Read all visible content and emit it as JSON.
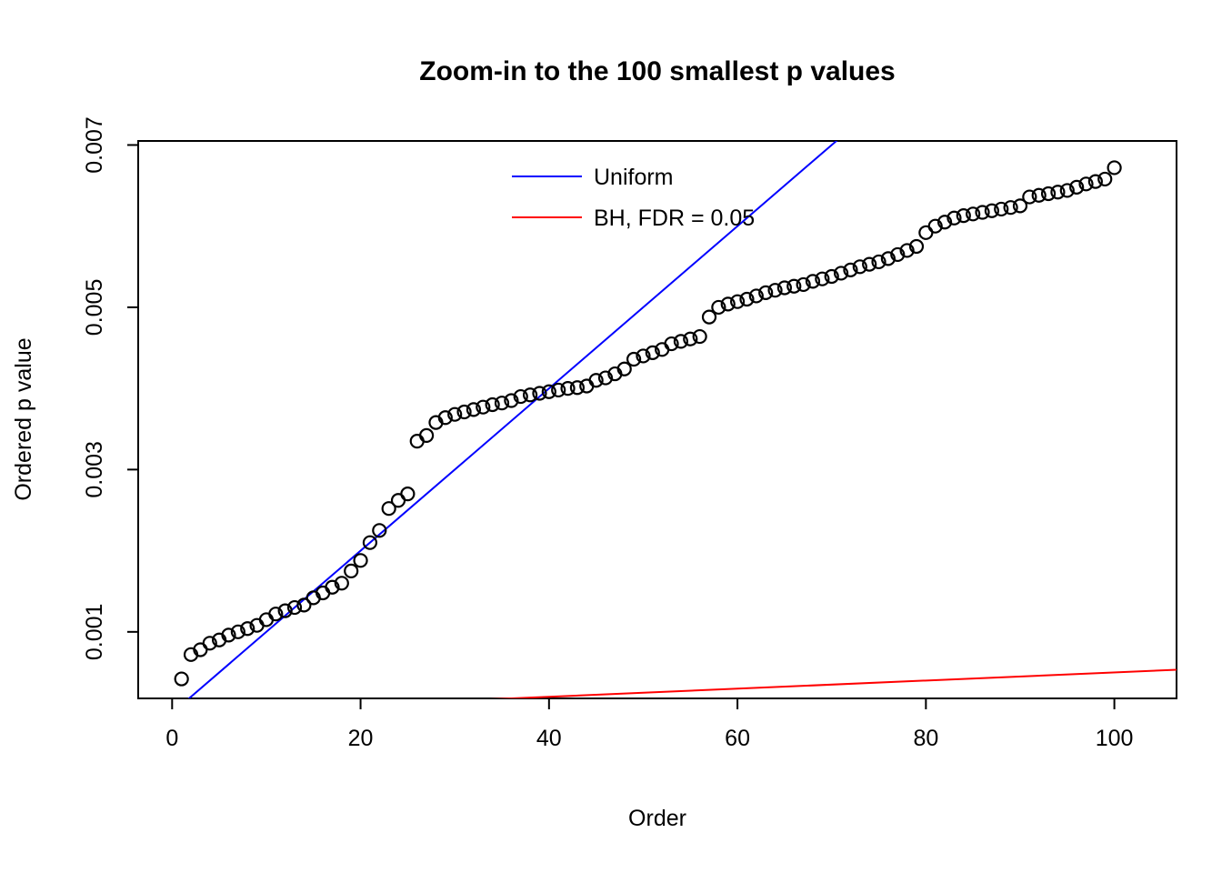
{
  "page": {
    "background_color": "#ffffff"
  },
  "chart_data": {
    "type": "scatter",
    "title": "Zoom-in to the 100 smallest p values",
    "xlabel": "Order",
    "ylabel": "Ordered p value",
    "xlim": [
      -3.6,
      106.6
    ],
    "ylim": [
      0.00018,
      0.00705
    ],
    "grid": false,
    "x_ticks": [
      0,
      20,
      40,
      60,
      80,
      100
    ],
    "x_tick_labels": [
      "0",
      "20",
      "40",
      "60",
      "80",
      "100"
    ],
    "y_ticks": [
      0.001,
      0.003,
      0.005,
      0.007
    ],
    "y_tick_labels": [
      "0.001",
      "0.003",
      "0.005",
      "0.007"
    ],
    "points": {
      "marker": "open-circle",
      "color": "#000000",
      "x_rule": "order index 1 through 100",
      "y": [
        0.00042,
        0.00072,
        0.00078,
        0.00086,
        0.0009,
        0.00096,
        0.001,
        0.00104,
        0.00108,
        0.00115,
        0.00122,
        0.00126,
        0.0013,
        0.00133,
        0.00142,
        0.00148,
        0.00155,
        0.0016,
        0.00175,
        0.00188,
        0.0021,
        0.00225,
        0.00252,
        0.00262,
        0.0027,
        0.00335,
        0.00342,
        0.00358,
        0.00364,
        0.00368,
        0.00371,
        0.00374,
        0.00377,
        0.0038,
        0.00382,
        0.00385,
        0.0039,
        0.00392,
        0.00394,
        0.00396,
        0.00398,
        0.004,
        0.00401,
        0.00403,
        0.0041,
        0.00413,
        0.00418,
        0.00424,
        0.00436,
        0.0044,
        0.00444,
        0.00448,
        0.00455,
        0.00458,
        0.00461,
        0.00464,
        0.00488,
        0.005,
        0.00504,
        0.00507,
        0.0051,
        0.00514,
        0.00518,
        0.00521,
        0.00524,
        0.00526,
        0.00528,
        0.00532,
        0.00535,
        0.00538,
        0.00542,
        0.00546,
        0.0055,
        0.00553,
        0.00556,
        0.0056,
        0.00565,
        0.0057,
        0.00575,
        0.00592,
        0.006,
        0.00605,
        0.0061,
        0.00613,
        0.00615,
        0.00617,
        0.00619,
        0.00621,
        0.00623,
        0.00625,
        0.00636,
        0.00638,
        0.0064,
        0.00642,
        0.00644,
        0.00648,
        0.00652,
        0.00655,
        0.00658,
        0.00672
      ]
    },
    "lines": [
      {
        "name": "Uniform",
        "color": "#0000ff",
        "slope": 0.0001,
        "intercept": 0
      },
      {
        "name": "BH, FDR = 0.05",
        "color": "#ff0000",
        "slope": 5e-06,
        "intercept": 0
      }
    ],
    "legend": {
      "position": "top-center-inside",
      "items": [
        {
          "label": "Uniform",
          "color": "#0000ff"
        },
        {
          "label": "BH, FDR = 0.05",
          "color": "#ff0000"
        }
      ]
    }
  }
}
